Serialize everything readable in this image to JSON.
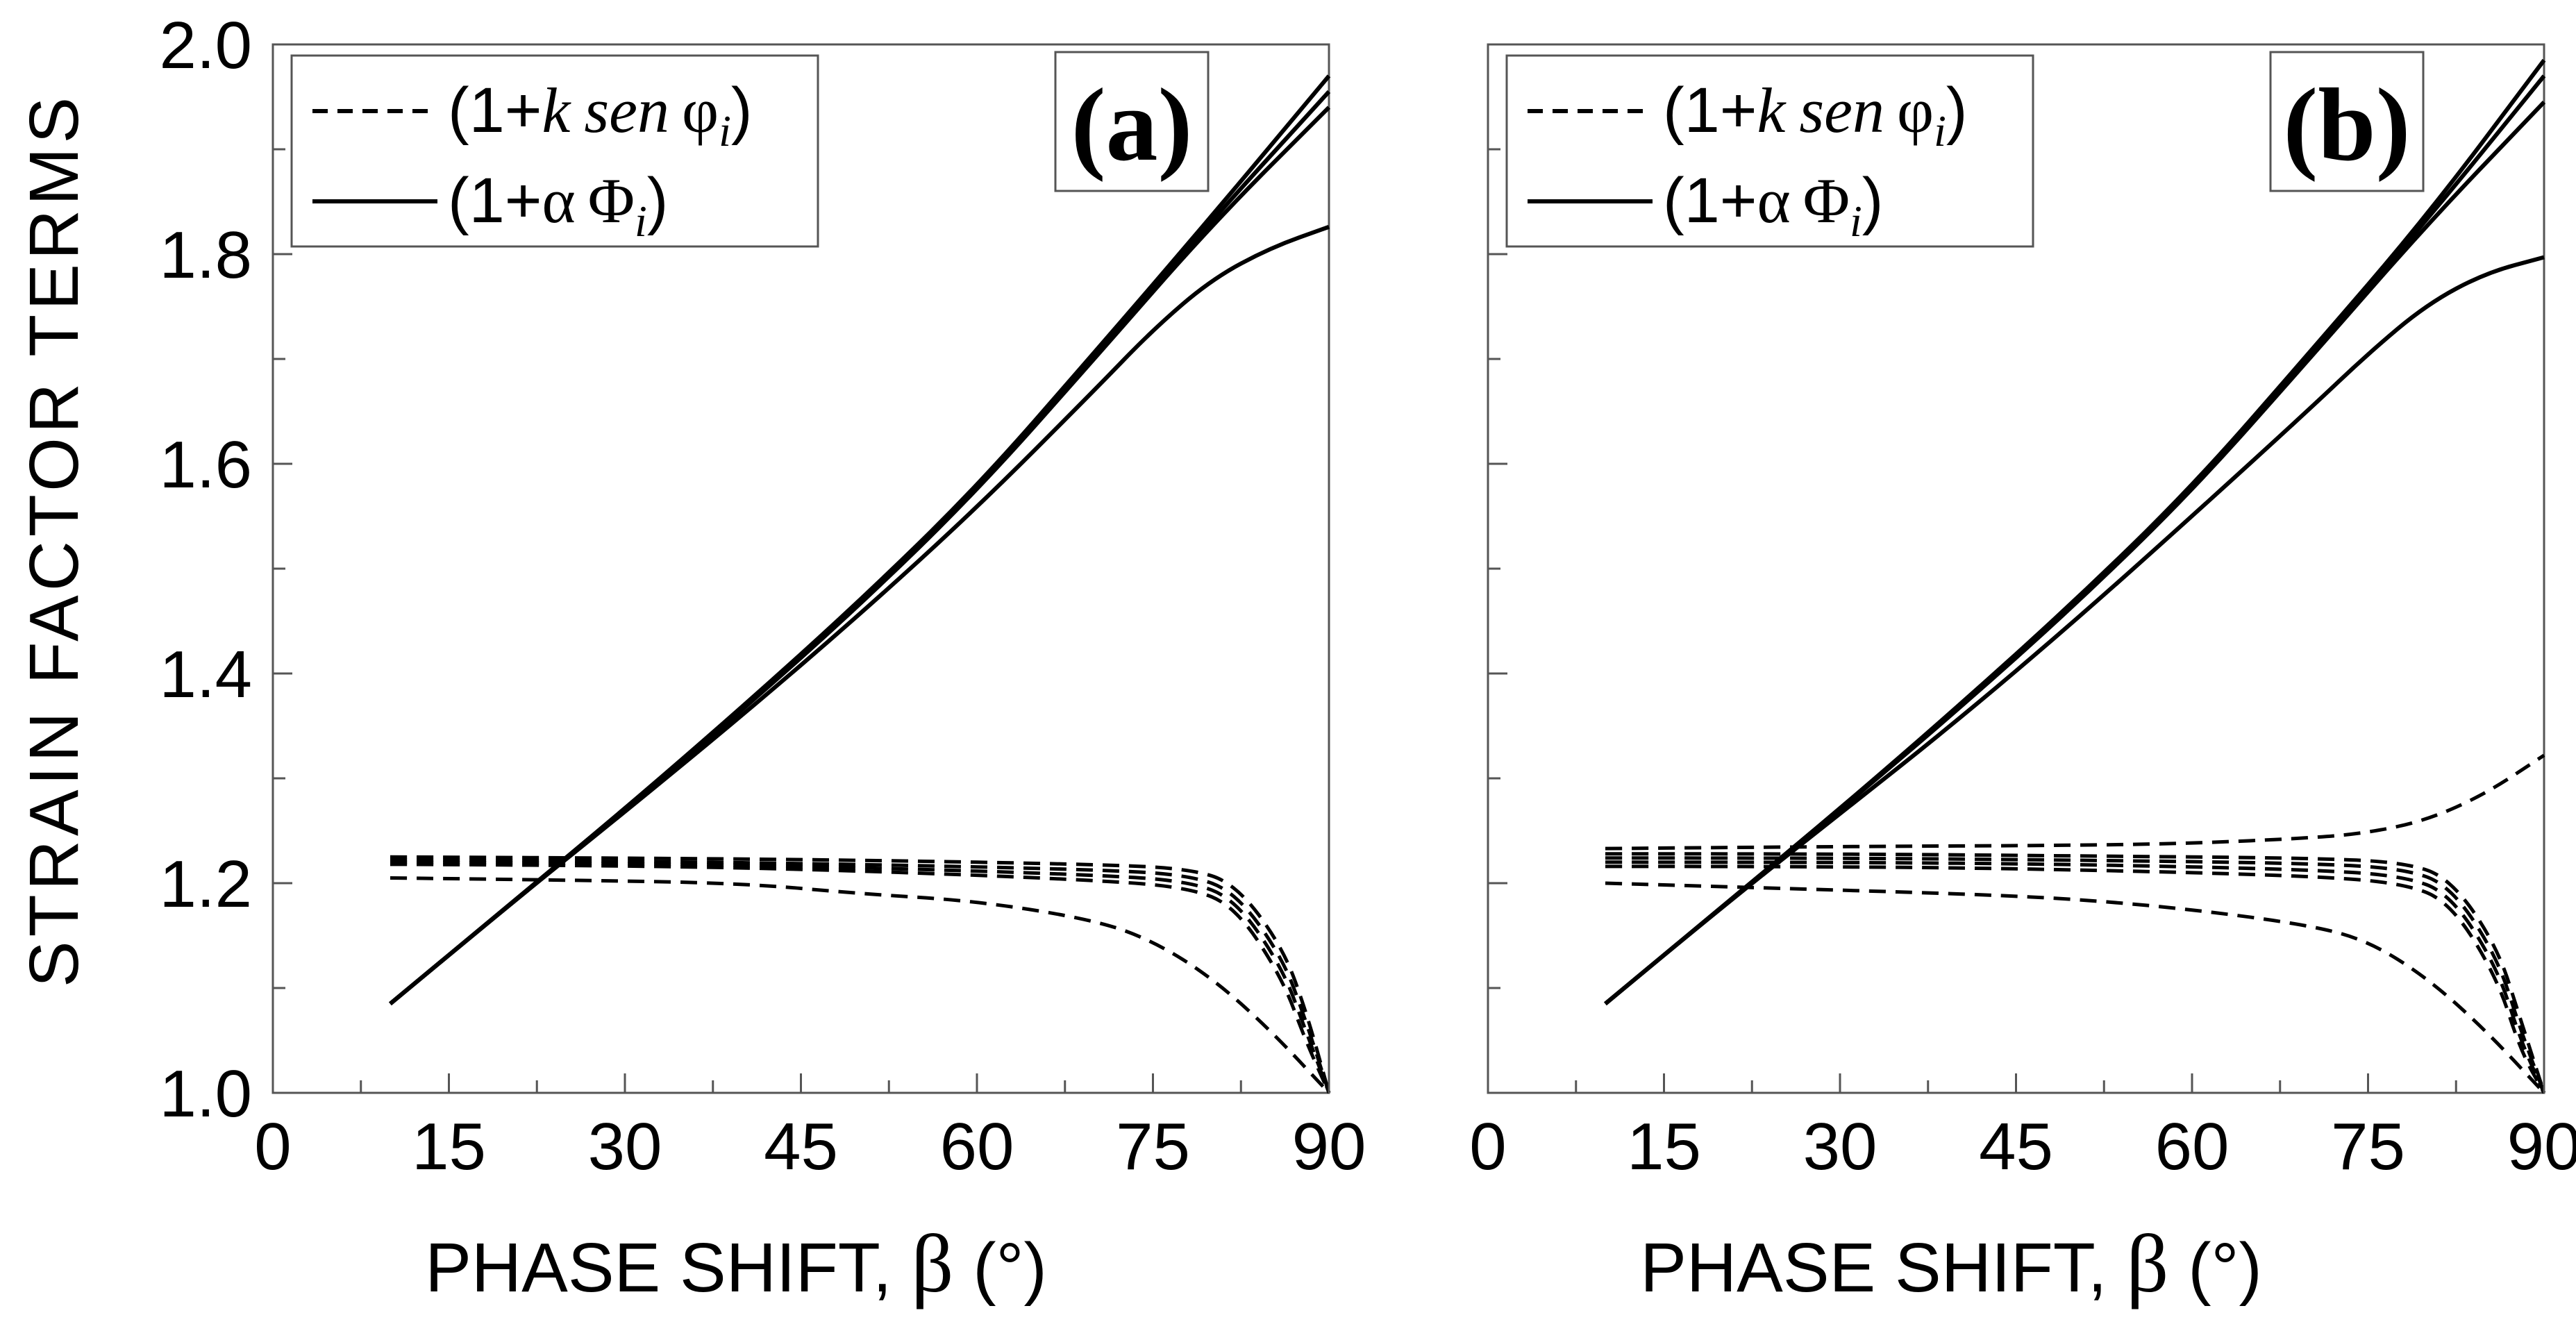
{
  "figure": {
    "ylabel": "STRAIN  FACTOR  TERMS",
    "xlabel_text": "PHASE SHIFT, ",
    "xlabel_symbol": "β",
    "xlabel_unit": " (°)"
  },
  "legend": {
    "dashed": {
      "prefix": "(1+",
      "k": "k",
      "sen": "sen",
      "phi": "φ",
      "sub": "i",
      "suffix": ")"
    },
    "solid": {
      "prefix": "(1+",
      "alpha": "α",
      "Phi": "Φ",
      "sub": "i",
      "suffix": ")"
    }
  },
  "chart_data": [
    {
      "type": "line",
      "panel_label": "(a)",
      "xlim": [
        0,
        90
      ],
      "ylim": [
        1.0,
        2.0
      ],
      "xticks": [
        0,
        15,
        30,
        45,
        60,
        75,
        90
      ],
      "yticks": [
        1.0,
        1.2,
        1.4,
        1.6,
        1.8,
        2.0
      ],
      "xlabel": "PHASE SHIFT, β (°)",
      "ylabel": "STRAIN  FACTOR  TERMS",
      "legend": [
        "(1+k sen φi)",
        "(1+α Φi)"
      ],
      "series": [
        {
          "name": "(1+α Φi) curve 1",
          "style": "solid",
          "x": [
            10,
            20,
            30,
            40,
            50,
            60,
            70,
            80,
            90
          ],
          "y": [
            1.085,
            1.178,
            1.271,
            1.368,
            1.469,
            1.578,
            1.706,
            1.836,
            1.97
          ]
        },
        {
          "name": "(1+α Φi) curve 2",
          "style": "solid",
          "x": [
            10,
            20,
            30,
            40,
            50,
            60,
            70,
            80,
            90
          ],
          "y": [
            1.085,
            1.178,
            1.271,
            1.367,
            1.468,
            1.576,
            1.703,
            1.832,
            1.955
          ]
        },
        {
          "name": "(1+α Φi) curve 3",
          "style": "solid",
          "x": [
            10,
            20,
            30,
            40,
            50,
            60,
            70,
            80,
            90
          ],
          "y": [
            1.085,
            1.178,
            1.27,
            1.365,
            1.465,
            1.574,
            1.7,
            1.828,
            1.94
          ]
        },
        {
          "name": "(1+α Φi) curve 4",
          "style": "solid",
          "x": [
            10,
            20,
            30,
            40,
            50,
            60,
            70,
            75,
            80,
            85,
            90
          ],
          "y": [
            1.085,
            1.178,
            1.268,
            1.36,
            1.456,
            1.558,
            1.67,
            1.728,
            1.776,
            1.806,
            1.826
          ]
        },
        {
          "name": "(1+k sen φi) curve 1",
          "style": "dashed",
          "x": [
            10,
            30,
            50,
            70,
            78,
            82,
            86,
            88,
            90
          ],
          "y": [
            1.225,
            1.224,
            1.222,
            1.218,
            1.214,
            1.2,
            1.14,
            1.08,
            1.0
          ]
        },
        {
          "name": "(1+k sen φi) curve 2",
          "style": "dashed",
          "x": [
            10,
            30,
            50,
            70,
            78,
            82,
            86,
            88,
            90
          ],
          "y": [
            1.222,
            1.221,
            1.218,
            1.213,
            1.208,
            1.192,
            1.13,
            1.07,
            1.0
          ]
        },
        {
          "name": "(1+k sen φi) curve 3",
          "style": "dashed",
          "x": [
            10,
            30,
            50,
            70,
            78,
            82,
            86,
            88,
            90
          ],
          "y": [
            1.22,
            1.219,
            1.215,
            1.208,
            1.202,
            1.185,
            1.12,
            1.06,
            1.0
          ]
        },
        {
          "name": "(1+k sen φi) curve 4",
          "style": "dashed",
          "x": [
            10,
            30,
            50,
            70,
            78,
            82,
            86,
            88,
            90
          ],
          "y": [
            1.218,
            1.217,
            1.212,
            1.203,
            1.196,
            1.178,
            1.11,
            1.05,
            1.0
          ]
        },
        {
          "name": "(1+k sen φi) curve 5",
          "style": "dashed",
          "x": [
            10,
            25,
            40,
            50,
            60,
            70,
            75,
            80,
            85,
            90
          ],
          "y": [
            1.205,
            1.203,
            1.2,
            1.19,
            1.183,
            1.165,
            1.145,
            1.11,
            1.06,
            1.0
          ]
        }
      ]
    },
    {
      "type": "line",
      "panel_label": "(b)",
      "xlim": [
        0,
        90
      ],
      "ylim": [
        1.0,
        2.0
      ],
      "xticks": [
        0,
        15,
        30,
        45,
        60,
        75,
        90
      ],
      "yticks": [
        1.0,
        1.2,
        1.4,
        1.6,
        1.8,
        2.0
      ],
      "xlabel": "PHASE SHIFT, β (°)",
      "ylabel": "",
      "legend": [
        "(1+k sen φi)",
        "(1+α Φi)"
      ],
      "series": [
        {
          "name": "(1+α Φi) curve 1",
          "style": "solid",
          "x": [
            10,
            20,
            30,
            40,
            50,
            60,
            70,
            80,
            90
          ],
          "y": [
            1.085,
            1.178,
            1.271,
            1.368,
            1.469,
            1.578,
            1.706,
            1.836,
            1.985
          ]
        },
        {
          "name": "(1+α Φi) curve 2",
          "style": "solid",
          "x": [
            10,
            20,
            30,
            40,
            50,
            60,
            70,
            80,
            90
          ],
          "y": [
            1.085,
            1.178,
            1.271,
            1.367,
            1.468,
            1.576,
            1.703,
            1.832,
            1.97
          ]
        },
        {
          "name": "(1+α Φi) curve 3",
          "style": "solid",
          "x": [
            10,
            20,
            30,
            40,
            50,
            60,
            70,
            80,
            90
          ],
          "y": [
            1.085,
            1.178,
            1.27,
            1.365,
            1.465,
            1.574,
            1.7,
            1.828,
            1.945
          ]
        },
        {
          "name": "(1+α Φi) curve 4",
          "style": "solid",
          "x": [
            10,
            20,
            30,
            40,
            50,
            60,
            70,
            75,
            80,
            85,
            90
          ],
          "y": [
            1.085,
            1.178,
            1.266,
            1.355,
            1.45,
            1.55,
            1.652,
            1.705,
            1.752,
            1.782,
            1.797
          ]
        },
        {
          "name": "(1+k sen φi) curve 1",
          "style": "dashed",
          "x": [
            10,
            30,
            50,
            60,
            70,
            75,
            80,
            85,
            90
          ],
          "y": [
            1.233,
            1.235,
            1.236,
            1.238,
            1.243,
            1.248,
            1.26,
            1.285,
            1.322
          ]
        },
        {
          "name": "(1+k sen φi) curve 2",
          "style": "dashed",
          "x": [
            10,
            30,
            50,
            70,
            78,
            82,
            86,
            88,
            90
          ],
          "y": [
            1.228,
            1.228,
            1.226,
            1.224,
            1.22,
            1.205,
            1.14,
            1.07,
            1.0
          ]
        },
        {
          "name": "(1+k sen φi) curve 3",
          "style": "dashed",
          "x": [
            10,
            30,
            50,
            70,
            78,
            82,
            86,
            88,
            90
          ],
          "y": [
            1.224,
            1.224,
            1.222,
            1.219,
            1.214,
            1.198,
            1.13,
            1.06,
            1.0
          ]
        },
        {
          "name": "(1+k sen φi) curve 4",
          "style": "dashed",
          "x": [
            10,
            30,
            50,
            70,
            78,
            82,
            86,
            88,
            90
          ],
          "y": [
            1.22,
            1.22,
            1.218,
            1.213,
            1.207,
            1.19,
            1.12,
            1.05,
            1.0
          ]
        },
        {
          "name": "(1+k sen φi) curve 5",
          "style": "dashed",
          "x": [
            10,
            30,
            50,
            70,
            78,
            82,
            86,
            88,
            90
          ],
          "y": [
            1.216,
            1.216,
            1.213,
            1.207,
            1.2,
            1.182,
            1.11,
            1.04,
            1.0
          ]
        },
        {
          "name": "(1+k sen φi) curve 6",
          "style": "dashed",
          "x": [
            10,
            25,
            40,
            50,
            60,
            70,
            75,
            80,
            85,
            90
          ],
          "y": [
            1.2,
            1.195,
            1.19,
            1.185,
            1.175,
            1.16,
            1.145,
            1.11,
            1.06,
            1.0
          ]
        }
      ]
    }
  ]
}
